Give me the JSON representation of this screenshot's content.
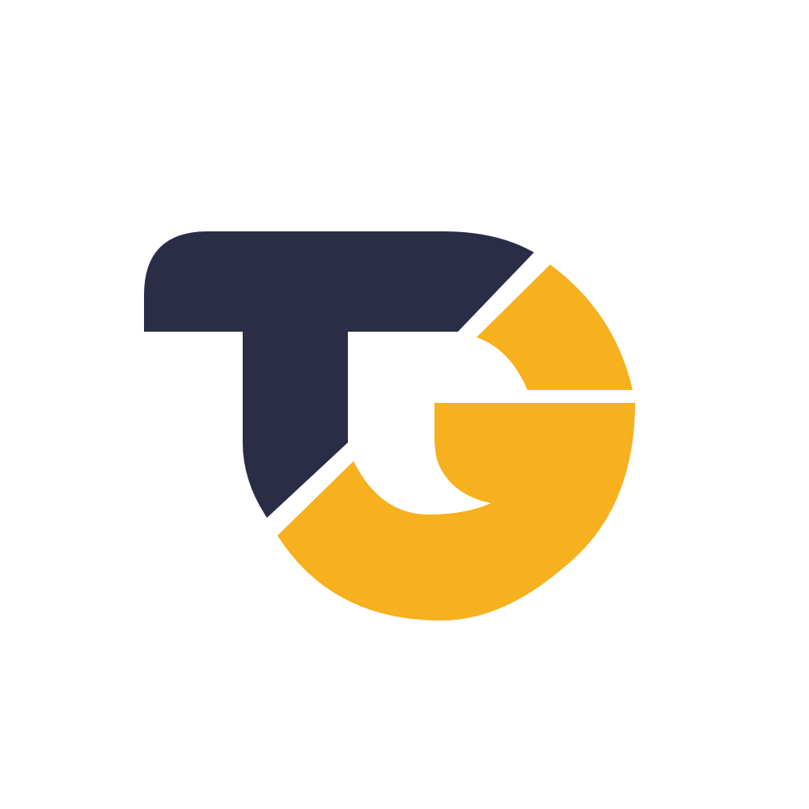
{
  "logo": {
    "letters": "TG",
    "icon": "tg-monogram-icon",
    "colors": {
      "background": "#ffffff",
      "t_shape": "#2b2d47",
      "g_shape": "#f7b01e"
    }
  }
}
